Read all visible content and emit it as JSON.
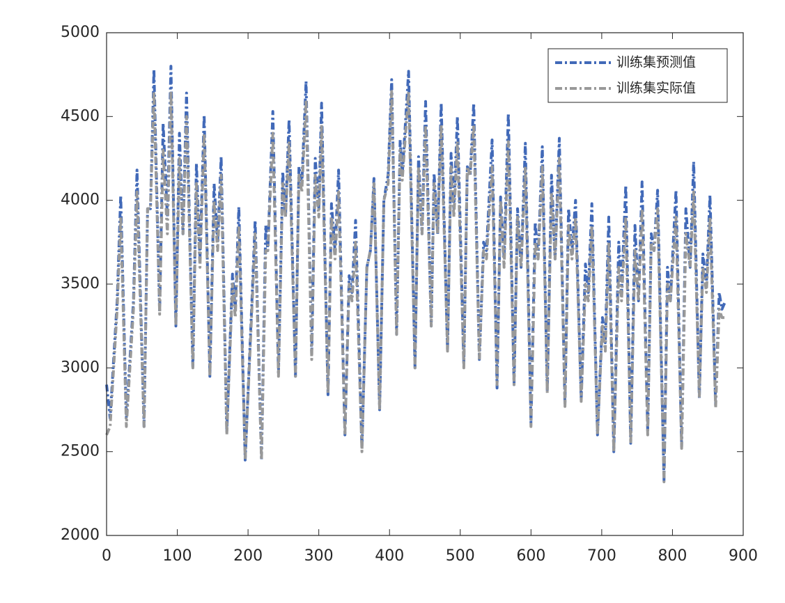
{
  "chart_data": {
    "type": "line",
    "x": [
      0,
      5,
      15,
      20,
      28,
      38,
      43,
      53,
      58,
      62,
      67,
      75,
      80,
      86,
      91,
      98,
      103,
      108,
      113,
      122,
      127,
      132,
      138,
      146,
      152,
      157,
      162,
      170,
      178,
      182,
      187,
      196,
      206,
      210,
      219,
      225,
      228,
      235,
      243,
      249,
      253,
      258,
      267,
      272,
      276,
      282,
      290,
      295,
      300,
      304,
      313,
      318,
      323,
      328,
      337,
      343,
      347,
      352,
      361,
      368,
      373,
      378,
      386,
      392,
      398,
      403,
      410,
      415,
      418,
      427,
      436,
      441,
      446,
      451,
      459,
      463,
      468,
      473,
      482,
      487,
      491,
      496,
      505,
      510,
      514,
      519,
      527,
      533,
      537,
      545,
      552,
      557,
      562,
      568,
      576,
      581,
      586,
      592,
      600,
      606,
      610,
      616,
      623,
      629,
      634,
      640,
      648,
      653,
      658,
      663,
      671,
      677,
      681,
      686,
      694,
      701,
      705,
      710,
      717,
      724,
      728,
      734,
      741,
      747,
      752,
      757,
      765,
      770,
      774,
      779,
      788,
      793,
      797,
      805,
      813,
      819,
      825,
      830,
      838,
      843,
      848,
      853,
      861,
      866,
      870,
      875
    ],
    "series": [
      {
        "name": "训练集预测值",
        "color": "#4169b8",
        "values": [
          2900,
          2700,
          3400,
          4030,
          2700,
          3400,
          4180,
          2650,
          3950,
          3950,
          4780,
          3330,
          4460,
          3900,
          4800,
          3250,
          4400,
          3800,
          4640,
          3000,
          4220,
          3650,
          4510,
          2950,
          4100,
          3750,
          4260,
          2620,
          3560,
          3350,
          3960,
          2450,
          3450,
          3880,
          2450,
          3850,
          3700,
          4530,
          2970,
          4170,
          3900,
          4480,
          2950,
          4200,
          4100,
          4710,
          3080,
          4250,
          3950,
          4580,
          2840,
          3980,
          3700,
          4180,
          2600,
          3550,
          3450,
          3880,
          2520,
          3600,
          3700,
          4130,
          2750,
          4000,
          4150,
          4720,
          3200,
          4360,
          4150,
          4770,
          3000,
          4260,
          3800,
          4590,
          3250,
          4160,
          3800,
          4580,
          3100,
          4280,
          3950,
          4500,
          3020,
          4200,
          4150,
          4580,
          3050,
          3750,
          3700,
          4360,
          2880,
          4020,
          3650,
          4520,
          2900,
          3950,
          3600,
          4340,
          2670,
          3870,
          3650,
          4320,
          2860,
          4150,
          3650,
          4370,
          2780,
          3950,
          3700,
          4000,
          2810,
          3620,
          3450,
          3980,
          2600,
          3300,
          3150,
          3900,
          2500,
          3750,
          3450,
          4090,
          2550,
          3850,
          3400,
          4110,
          2620,
          3800,
          3700,
          4060,
          2330,
          3600,
          3400,
          4060,
          2530,
          3950,
          3600,
          4230,
          2820,
          3680,
          3500,
          4030,
          2780,
          3450,
          3350,
          3400
        ]
      },
      {
        "name": "训练集实际值",
        "color": "#999999",
        "values": [
          2600,
          2650,
          3350,
          3900,
          2650,
          3350,
          4050,
          2650,
          3950,
          3950,
          4650,
          3320,
          4300,
          3800,
          4650,
          3250,
          4250,
          3800,
          4500,
          3000,
          4100,
          3600,
          4400,
          2950,
          4000,
          3700,
          4150,
          2600,
          3500,
          3300,
          3850,
          2450,
          3400,
          3800,
          2450,
          3700,
          3700,
          4400,
          2950,
          4100,
          3900,
          4350,
          2950,
          4150,
          4050,
          4600,
          3050,
          4150,
          3900,
          4450,
          2850,
          3900,
          3650,
          4050,
          2600,
          3500,
          3400,
          3750,
          2500,
          3600,
          3700,
          4100,
          2750,
          4000,
          4100,
          4650,
          3200,
          4300,
          4120,
          4650,
          3000,
          4200,
          3800,
          4450,
          3250,
          4100,
          3800,
          4450,
          3100,
          4200,
          3900,
          4350,
          3000,
          4200,
          4150,
          4450,
          3050,
          3700,
          3650,
          4200,
          2900,
          4000,
          3600,
          4350,
          2900,
          3900,
          3600,
          4200,
          2650,
          3750,
          3650,
          4200,
          2850,
          4050,
          3650,
          4250,
          2770,
          3850,
          3650,
          3900,
          2800,
          3500,
          3400,
          3850,
          2600,
          3250,
          3100,
          3750,
          2500,
          3600,
          3400,
          3900,
          2550,
          3700,
          3400,
          3950,
          2600,
          3750,
          3700,
          3950,
          2320,
          3500,
          3400,
          3900,
          2520,
          3800,
          3600,
          4050,
          2830,
          3600,
          3450,
          3900,
          2760,
          3350,
          3300,
          3300
        ]
      }
    ],
    "xlim": [
      0,
      900
    ],
    "xticks": [
      0,
      100,
      200,
      300,
      400,
      500,
      600,
      700,
      800,
      900
    ],
    "ylim": [
      2000,
      5000
    ],
    "yticks": [
      2000,
      2500,
      3000,
      3500,
      4000,
      4500,
      5000
    ],
    "grid": false,
    "legend": "upper right"
  }
}
